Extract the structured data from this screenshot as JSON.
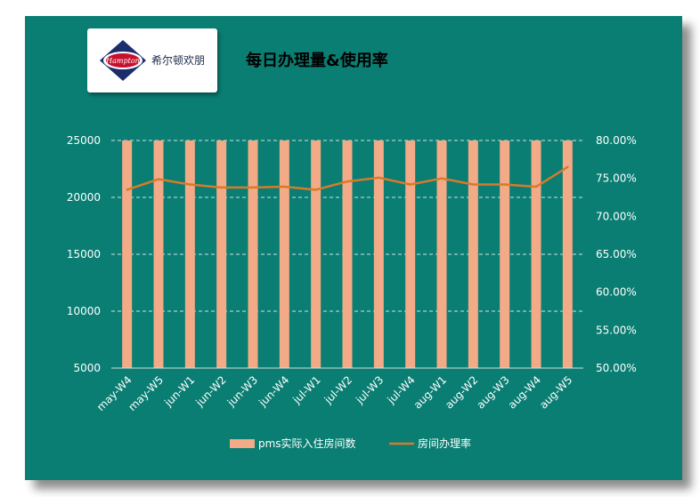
{
  "header": {
    "brand_name": "希尔顿欢朋",
    "logo_text": "Hampton",
    "title": "每日办理量&使用率"
  },
  "colors": {
    "background": "#0a7e73",
    "bar": "#f2aa87",
    "line": "#d97a2a",
    "grid": "#cfe3df"
  },
  "chart_data": {
    "type": "bar",
    "title": "每日办理量&使用率",
    "categories": [
      "may-W4",
      "may-W5",
      "jun-W1",
      "jun-W2",
      "jun-W3",
      "jun-W4",
      "jul-W1",
      "jul-W2",
      "jul-W3",
      "jul-W4",
      "aug-W1",
      "aug-W2",
      "aug-W3",
      "aug-W4",
      "aug-W5"
    ],
    "ylim": [
      5000,
      25000
    ],
    "y_ticks": [
      "5000",
      "10000",
      "15000",
      "20000",
      "25000"
    ],
    "y2lim": [
      0.5,
      0.8
    ],
    "y2_ticks": [
      "50.00%",
      "55.00%",
      "60.00%",
      "65.00%",
      "70.00%",
      "75.00%",
      "80.00%"
    ],
    "grid": true,
    "legend_position": "bottom",
    "series": [
      {
        "name": "pms实际入住房间数",
        "type": "bar",
        "axis": "left",
        "values": [
          25000,
          25000,
          25000,
          25000,
          25000,
          25000,
          25000,
          25000,
          25000,
          25000,
          25000,
          25000,
          25000,
          25000,
          25000
        ]
      },
      {
        "name": "房间办理率",
        "type": "line",
        "axis": "right",
        "values": [
          0.735,
          0.749,
          0.742,
          0.738,
          0.738,
          0.739,
          0.735,
          0.746,
          0.751,
          0.742,
          0.75,
          0.742,
          0.742,
          0.739,
          0.765
        ]
      }
    ]
  }
}
